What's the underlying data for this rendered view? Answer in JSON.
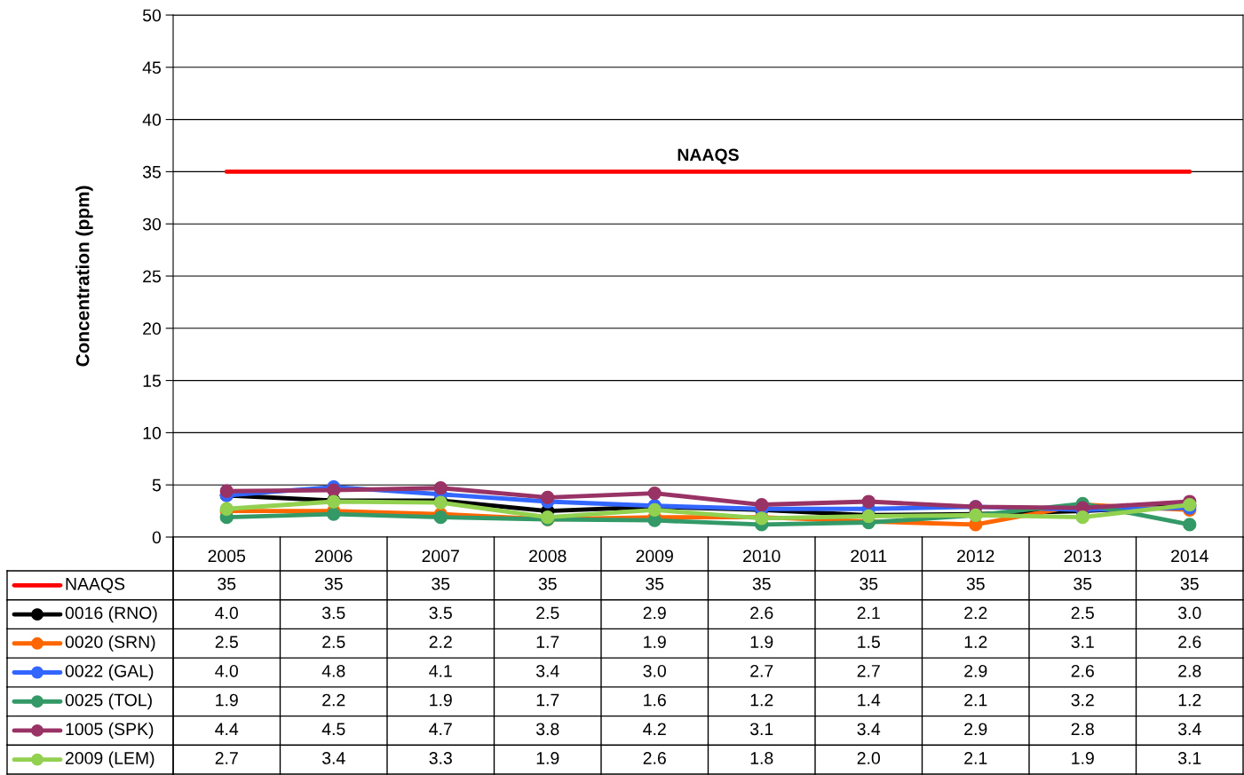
{
  "chart_data": {
    "type": "line",
    "ylabel": "Concentration (ppm)",
    "categories": [
      "2005",
      "2006",
      "2007",
      "2008",
      "2009",
      "2010",
      "2011",
      "2012",
      "2013",
      "2014"
    ],
    "ylim": [
      0,
      50
    ],
    "yticks": [
      0,
      5,
      10,
      15,
      20,
      25,
      30,
      35,
      40,
      45,
      50
    ],
    "grid": "y",
    "legend": "bottom",
    "marker": "circle",
    "line_style": "solid",
    "annotations": [
      {
        "text": "NAAQS",
        "y": 35
      }
    ],
    "series": [
      {
        "name": "NAAQS",
        "color": "#ff0000",
        "marker": "none",
        "values": [
          35,
          35,
          35,
          35,
          35,
          35,
          35,
          35,
          35,
          35
        ],
        "value_labels": [
          "35",
          "35",
          "35",
          "35",
          "35",
          "35",
          "35",
          "35",
          "35",
          "35"
        ]
      },
      {
        "name": "0016 (RNO)",
        "color": "#000000",
        "values": [
          4.0,
          3.5,
          3.5,
          2.5,
          2.9,
          2.6,
          2.1,
          2.2,
          2.5,
          3.0
        ],
        "value_labels": [
          "4.0",
          "3.5",
          "3.5",
          "2.5",
          "2.9",
          "2.6",
          "2.1",
          "2.2",
          "2.5",
          "3.0"
        ]
      },
      {
        "name": "0020 (SRN)",
        "color": "#ff6600",
        "values": [
          2.5,
          2.5,
          2.2,
          1.7,
          1.9,
          1.9,
          1.5,
          1.2,
          3.1,
          2.6
        ],
        "value_labels": [
          "2.5",
          "2.5",
          "2.2",
          "1.7",
          "1.9",
          "1.9",
          "1.5",
          "1.2",
          "3.1",
          "2.6"
        ]
      },
      {
        "name": "0022 (GAL)",
        "color": "#3366ff",
        "values": [
          4.0,
          4.8,
          4.1,
          3.4,
          3.0,
          2.7,
          2.7,
          2.9,
          2.6,
          2.8
        ],
        "value_labels": [
          "4.0",
          "4.8",
          "4.1",
          "3.4",
          "3.0",
          "2.7",
          "2.7",
          "2.9",
          "2.6",
          "2.8"
        ]
      },
      {
        "name": "0025 (TOL)",
        "color": "#339966",
        "values": [
          1.9,
          2.2,
          1.9,
          1.7,
          1.6,
          1.2,
          1.4,
          2.1,
          3.2,
          1.2
        ],
        "value_labels": [
          "1.9",
          "2.2",
          "1.9",
          "1.7",
          "1.6",
          "1.2",
          "1.4",
          "2.1",
          "3.2",
          "1.2"
        ]
      },
      {
        "name": "1005 (SPK)",
        "color": "#993366",
        "values": [
          4.4,
          4.5,
          4.7,
          3.8,
          4.2,
          3.1,
          3.4,
          2.9,
          2.8,
          3.4
        ],
        "value_labels": [
          "4.4",
          "4.5",
          "4.7",
          "3.8",
          "4.2",
          "3.1",
          "3.4",
          "2.9",
          "2.8",
          "3.4"
        ]
      },
      {
        "name": "2009 (LEM)",
        "color": "#92d050",
        "values": [
          2.7,
          3.4,
          3.3,
          1.9,
          2.6,
          1.8,
          2.0,
          2.1,
          1.9,
          3.1
        ],
        "value_labels": [
          "2.7",
          "3.4",
          "3.3",
          "1.9",
          "2.6",
          "1.8",
          "2.0",
          "2.1",
          "1.9",
          "3.1"
        ]
      }
    ]
  }
}
